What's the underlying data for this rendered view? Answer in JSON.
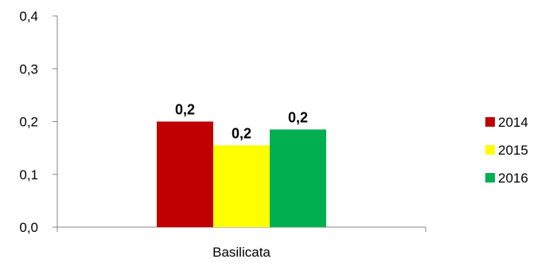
{
  "chart_data": {
    "type": "bar",
    "categories": [
      "Basilicata"
    ],
    "series": [
      {
        "name": "2014",
        "values": [
          0.2
        ],
        "label": "0,2",
        "color": "#C00000"
      },
      {
        "name": "2015",
        "values": [
          0.155
        ],
        "label": "0,2",
        "color": "#FFFF00"
      },
      {
        "name": "2016",
        "values": [
          0.185
        ],
        "label": "0,2",
        "color": "#00B050"
      }
    ],
    "ylim": [
      0,
      0.4
    ],
    "yticks": [
      "0,0",
      "0,1",
      "0,2",
      "0,3",
      "0,4"
    ],
    "grid": false,
    "legend_position": "right"
  }
}
